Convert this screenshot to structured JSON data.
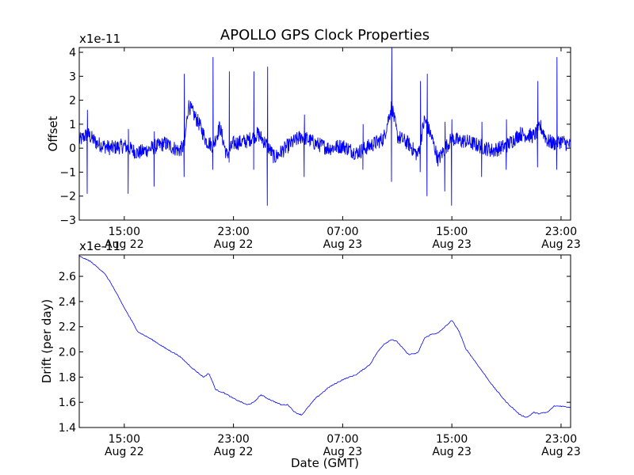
{
  "figure_title": "APOLLO GPS Clock Properties",
  "chart_data": [
    {
      "type": "line",
      "title": "APOLLO GPS Clock Properties",
      "ylabel": "Offset",
      "xlabel": "",
      "scale_label": "x1e-11",
      "ylim": [
        -3,
        4.2
      ],
      "yticks": [
        -3,
        -2,
        -1,
        0,
        1,
        2,
        3,
        4
      ],
      "ytick_labels": [
        "−3",
        "−2",
        "−1",
        "0",
        "1",
        "2",
        "3",
        "4"
      ],
      "xlim_hours": [
        11.7,
        47.7
      ],
      "xticks_hours": [
        15,
        23,
        31,
        39,
        47
      ],
      "xtick_labels": [
        [
          "15:00",
          "Aug 22"
        ],
        [
          "23:00",
          "Aug 22"
        ],
        [
          "07:00",
          "Aug 23"
        ],
        [
          "15:00",
          "Aug 23"
        ],
        [
          "23:00",
          "Aug 23"
        ]
      ],
      "color": "#0000ff",
      "series": [
        {
          "name": "offset",
          "x": [
            11.7,
            12.3,
            13.0,
            14.0,
            15.0,
            16.0,
            17.0,
            18.0,
            19.0,
            19.4,
            19.7,
            20.5,
            21.0,
            21.5,
            22.0,
            22.5,
            23.0,
            24.0,
            24.8,
            25.5,
            26.0,
            27.0,
            28.0,
            29.0,
            30.0,
            31.0,
            32.0,
            33.0,
            34.0,
            34.6,
            35.0,
            35.8,
            36.5,
            37.0,
            37.5,
            38.0,
            38.5,
            39.0,
            39.5,
            40.0,
            41.0,
            42.0,
            43.0,
            44.0,
            45.0,
            45.5,
            46.0,
            46.5,
            47.0,
            47.7
          ],
          "values": [
            0.3,
            0.6,
            0.2,
            0.0,
            0.1,
            -0.2,
            0.0,
            0.2,
            -0.1,
            0.1,
            1.8,
            1.0,
            0.3,
            0.1,
            0.9,
            -0.3,
            0.2,
            0.3,
            0.6,
            0.1,
            -0.4,
            0.1,
            0.5,
            0.2,
            0.0,
            0.1,
            -0.2,
            0.1,
            0.4,
            1.8,
            0.5,
            0.2,
            -0.3,
            1.2,
            0.5,
            -0.5,
            0.0,
            0.4,
            0.3,
            0.3,
            0.1,
            -0.1,
            0.1,
            0.6,
            0.5,
            0.9,
            0.3,
            0.2,
            0.3,
            0.1
          ],
          "noise": 0.32,
          "spikes": [
            {
              "x": 12.3,
              "low": -1.9,
              "high": 1.6
            },
            {
              "x": 15.3,
              "low": -1.9,
              "high": 0.8
            },
            {
              "x": 17.2,
              "low": -1.6,
              "high": 0.7
            },
            {
              "x": 19.4,
              "low": -1.2,
              "high": 3.1
            },
            {
              "x": 21.5,
              "low": -0.9,
              "high": 3.8
            },
            {
              "x": 22.7,
              "low": -0.6,
              "high": 3.2
            },
            {
              "x": 24.5,
              "low": -0.9,
              "high": 3.2
            },
            {
              "x": 25.5,
              "low": -2.4,
              "high": 3.4
            },
            {
              "x": 28.2,
              "low": -1.2,
              "high": 1.4
            },
            {
              "x": 32.5,
              "low": -0.9,
              "high": 1.0
            },
            {
              "x": 34.6,
              "low": -1.4,
              "high": 4.2
            },
            {
              "x": 36.7,
              "low": -1.0,
              "high": 2.8
            },
            {
              "x": 37.2,
              "low": -2.0,
              "high": 3.1
            },
            {
              "x": 38.5,
              "low": -1.8,
              "high": 1.1
            },
            {
              "x": 39.0,
              "low": -2.4,
              "high": 1.2
            },
            {
              "x": 41.2,
              "low": -1.2,
              "high": 1.1
            },
            {
              "x": 43.0,
              "low": -0.9,
              "high": 1.2
            },
            {
              "x": 45.3,
              "low": -0.8,
              "high": 2.8
            },
            {
              "x": 46.7,
              "low": -0.9,
              "high": 3.8
            }
          ]
        }
      ]
    },
    {
      "type": "line",
      "title": "",
      "ylabel": "Drift (per day)",
      "xlabel": "Date (GMT)",
      "scale_label": "x1e-11",
      "ylim": [
        1.4,
        2.77
      ],
      "yticks": [
        1.4,
        1.6,
        1.8,
        2.0,
        2.2,
        2.4,
        2.6
      ],
      "ytick_labels": [
        "1.4",
        "1.6",
        "1.8",
        "2.0",
        "2.2",
        "2.4",
        "2.6"
      ],
      "xlim_hours": [
        11.7,
        47.7
      ],
      "xticks_hours": [
        15,
        23,
        31,
        39,
        47
      ],
      "xtick_labels": [
        [
          "15:00",
          "Aug 22"
        ],
        [
          "23:00",
          "Aug 22"
        ],
        [
          "07:00",
          "Aug 23"
        ],
        [
          "15:00",
          "Aug 23"
        ],
        [
          "23:00",
          "Aug 23"
        ]
      ],
      "color": "#0000ff",
      "series": [
        {
          "name": "drift",
          "x": [
            11.7,
            12.5,
            13.5,
            14.0,
            15.0,
            16.0,
            17.0,
            18.0,
            19.0,
            20.0,
            20.8,
            21.2,
            21.7,
            22.4,
            23.0,
            24.0,
            24.5,
            25.0,
            25.5,
            26.5,
            27.0,
            27.5,
            28.0,
            29.0,
            30.0,
            31.0,
            32.0,
            33.0,
            33.5,
            34.0,
            34.6,
            35.0,
            35.8,
            36.5,
            37.0,
            37.5,
            38.0,
            38.5,
            39.0,
            39.5,
            40.0,
            41.0,
            42.0,
            43.0,
            44.0,
            44.5,
            45.0,
            45.3,
            46.0,
            46.5,
            47.0,
            47.7
          ],
          "values": [
            2.76,
            2.72,
            2.63,
            2.55,
            2.35,
            2.16,
            2.1,
            2.03,
            1.97,
            1.87,
            1.8,
            1.83,
            1.7,
            1.67,
            1.63,
            1.58,
            1.6,
            1.66,
            1.63,
            1.58,
            1.58,
            1.52,
            1.5,
            1.63,
            1.72,
            1.78,
            1.82,
            1.9,
            1.99,
            2.06,
            2.1,
            2.08,
            1.98,
            1.99,
            2.11,
            2.14,
            2.15,
            2.2,
            2.25,
            2.17,
            2.03,
            1.88,
            1.73,
            1.6,
            1.5,
            1.48,
            1.52,
            1.51,
            1.52,
            1.57,
            1.57,
            1.56
          ]
        }
      ]
    }
  ]
}
